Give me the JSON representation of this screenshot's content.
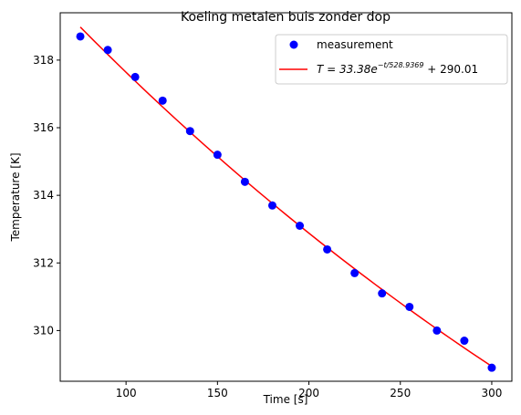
{
  "chart_data": {
    "type": "scatter",
    "title": "Koeling metalen buis zonder dop",
    "xlabel": "Time [s]",
    "ylabel": "Temperature [K]",
    "xlim": [
      64,
      311
    ],
    "ylim": [
      308.5,
      319.4
    ],
    "xticks": [
      100,
      150,
      200,
      250,
      300
    ],
    "yticks": [
      310,
      312,
      314,
      316,
      318
    ],
    "grid": false,
    "legend_position": "top-right",
    "series": [
      {
        "name": "measurement",
        "kind": "scatter",
        "color": "#0000ff",
        "x": [
          75,
          90,
          105,
          120,
          135,
          150,
          165,
          180,
          195,
          210,
          225,
          240,
          255,
          270,
          285,
          300
        ],
        "y": [
          318.7,
          318.3,
          317.5,
          316.8,
          315.9,
          315.2,
          314.4,
          313.7,
          313.1,
          312.4,
          311.7,
          311.1,
          310.7,
          310.0,
          309.7,
          308.9
        ]
      },
      {
        "name": "T = 33.38e^(−t/528.9369) + 290.01",
        "kind": "line",
        "color": "#ff0000",
        "A": 33.38,
        "tau": 528.9369,
        "C": 290.01,
        "x_range": [
          75,
          300
        ]
      }
    ]
  },
  "legend": {
    "measurement_label": "measurement",
    "fit_prefix": "T = 33.38e",
    "fit_exponent": "−t/528.9369",
    "fit_suffix": " + 290.01"
  }
}
